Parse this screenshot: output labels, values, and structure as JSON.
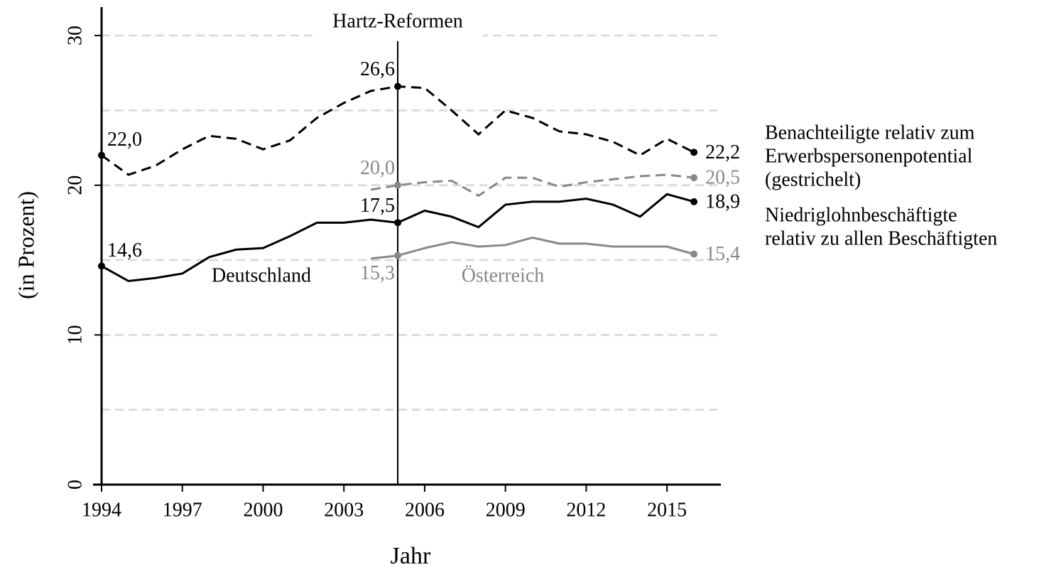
{
  "chart_data": {
    "type": "line",
    "x_label": "Jahr",
    "y_label": "(in Prozent)",
    "x": [
      1994,
      1995,
      1996,
      1997,
      1998,
      1999,
      2000,
      2001,
      2002,
      2003,
      2004,
      2005,
      2006,
      2007,
      2008,
      2009,
      2010,
      2011,
      2012,
      2013,
      2014,
      2015,
      2016
    ],
    "xlim": [
      1994,
      2017
    ],
    "xticks": [
      1994,
      1997,
      2000,
      2003,
      2006,
      2009,
      2012,
      2015
    ],
    "ylim": [
      0,
      31.9
    ],
    "yticks": [
      0,
      10,
      20,
      30
    ],
    "grid_lines": [
      5,
      10,
      15,
      20,
      25,
      30
    ],
    "annotation": {
      "text": "Hartz-Reformen",
      "x": 2005
    },
    "measures": [
      {
        "label_lines": [
          "Benachteiligte relativ zum",
          "Erwerbspersonenpotential",
          "(gestrichelt)"
        ],
        "dashed": true
      },
      {
        "label_lines": [
          "Niedriglohnbeschäftigte",
          "relativ zu allen Beschäftigten"
        ],
        "dashed": false
      }
    ],
    "countries": [
      {
        "name": "Deutschland",
        "color": "#000000",
        "values": [
          [
            22.0,
            20.7,
            21.3,
            22.4,
            23.3,
            23.1,
            22.4,
            23.0,
            24.5,
            25.5,
            26.3,
            26.6,
            26.5,
            25.0,
            23.4,
            25.0,
            24.5,
            23.6,
            23.4,
            22.9,
            22.0,
            23.1,
            22.2
          ],
          [
            14.6,
            13.6,
            13.8,
            14.1,
            15.2,
            15.7,
            15.8,
            16.6,
            17.5,
            17.5,
            17.7,
            17.5,
            18.3,
            17.9,
            17.2,
            18.7,
            18.9,
            18.9,
            19.1,
            18.7,
            17.9,
            19.4,
            18.9
          ]
        ],
        "value_labels": [
          [
            "22,0",
            null,
            null,
            null,
            null,
            null,
            null,
            null,
            null,
            null,
            null,
            "26,6",
            null,
            null,
            null,
            null,
            null,
            null,
            null,
            null,
            null,
            null,
            "22,2"
          ],
          [
            "14,6",
            null,
            null,
            null,
            null,
            null,
            null,
            null,
            null,
            null,
            null,
            "17,5",
            null,
            null,
            null,
            null,
            null,
            null,
            null,
            null,
            null,
            null,
            "18,9"
          ]
        ]
      },
      {
        "name": "Österreich",
        "color": "#888888",
        "values": [
          [
            null,
            null,
            null,
            null,
            null,
            null,
            null,
            null,
            null,
            null,
            19.7,
            20.0,
            20.2,
            20.3,
            19.3,
            20.5,
            20.5,
            19.9,
            20.2,
            20.4,
            20.6,
            20.7,
            20.5
          ],
          [
            null,
            null,
            null,
            null,
            null,
            null,
            null,
            null,
            null,
            null,
            15.1,
            15.3,
            15.8,
            16.2,
            15.9,
            16.0,
            16.5,
            16.1,
            16.1,
            15.9,
            15.9,
            15.9,
            15.4
          ]
        ],
        "value_labels": [
          [
            null,
            null,
            null,
            null,
            null,
            null,
            null,
            null,
            null,
            null,
            null,
            "20,0",
            null,
            null,
            null,
            null,
            null,
            null,
            null,
            null,
            null,
            null,
            "20,5"
          ],
          [
            null,
            null,
            null,
            null,
            null,
            null,
            null,
            null,
            null,
            null,
            null,
            "15,3",
            null,
            null,
            null,
            null,
            null,
            null,
            null,
            null,
            null,
            null,
            "15,4"
          ]
        ]
      }
    ]
  }
}
